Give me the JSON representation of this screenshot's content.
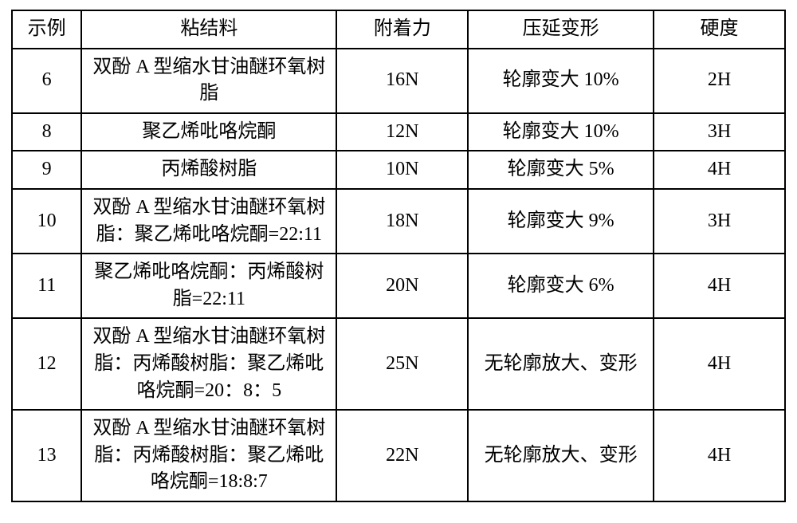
{
  "table": {
    "columns": [
      "示例",
      "粘结料",
      "附着力",
      "压延变形",
      "硬度"
    ],
    "rows": [
      [
        "6",
        "双酚 A 型缩水甘油醚环氧树脂",
        "16N",
        "轮廓变大 10%",
        "2H"
      ],
      [
        "8",
        "聚乙烯吡咯烷酮",
        "12N",
        "轮廓变大 10%",
        "3H"
      ],
      [
        "9",
        "丙烯酸树脂",
        "10N",
        "轮廓变大 5%",
        "4H"
      ],
      [
        "10",
        "双酚 A 型缩水甘油醚环氧树脂：聚乙烯吡咯烷酮=22:11",
        "18N",
        "轮廓变大 9%",
        "3H"
      ],
      [
        "11",
        "聚乙烯吡咯烷酮：丙烯酸树脂=22:11",
        "20N",
        "轮廓变大 6%",
        "4H"
      ],
      [
        "12",
        "双酚 A 型缩水甘油醚环氧树脂：丙烯酸树脂：聚乙烯吡咯烷酮=20：8：5",
        "25N",
        "无轮廓放大、变形",
        "4H"
      ],
      [
        "13",
        "双酚 A 型缩水甘油醚环氧树脂：丙烯酸树脂：聚乙烯吡咯烷酮=18:8:7",
        "22N",
        "无轮廓放大、变形",
        "4H"
      ]
    ],
    "border_color": "#000000",
    "background_color": "#ffffff",
    "font_size_pt": 18,
    "col_widths_pct": [
      9,
      33,
      17,
      24,
      17
    ]
  }
}
